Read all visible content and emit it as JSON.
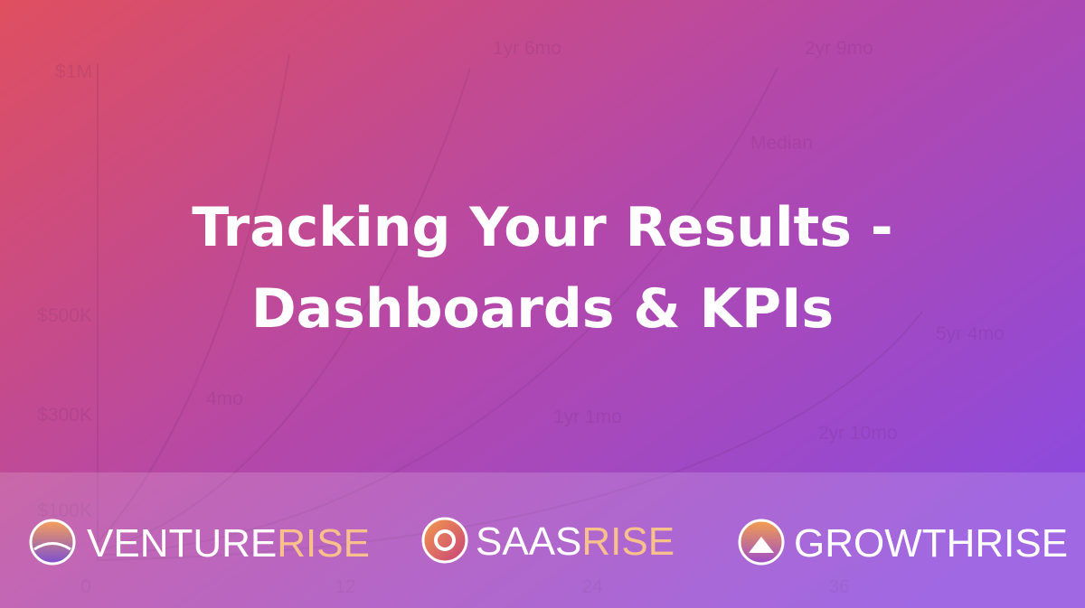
{
  "background_chart": {
    "y_labels": [
      "$1M",
      "$500K",
      "$300K",
      "$100K"
    ],
    "x_labels": [
      "0",
      "12",
      "24",
      "36"
    ],
    "annotations": [
      "1yr 6mo",
      "2yr 9mo",
      "Median",
      "5yr 4mo",
      "1yr 1mo",
      "2yr 10mo",
      "4mo"
    ]
  },
  "title": [
    "Tracking Your Results -",
    "Dashboards & KPIs"
  ],
  "brands": [
    {
      "name": "VENTURE",
      "accent": "RISE"
    },
    {
      "name": "SAAS",
      "accent": "RISE"
    },
    {
      "name": "GROWTHRISE"
    }
  ]
}
